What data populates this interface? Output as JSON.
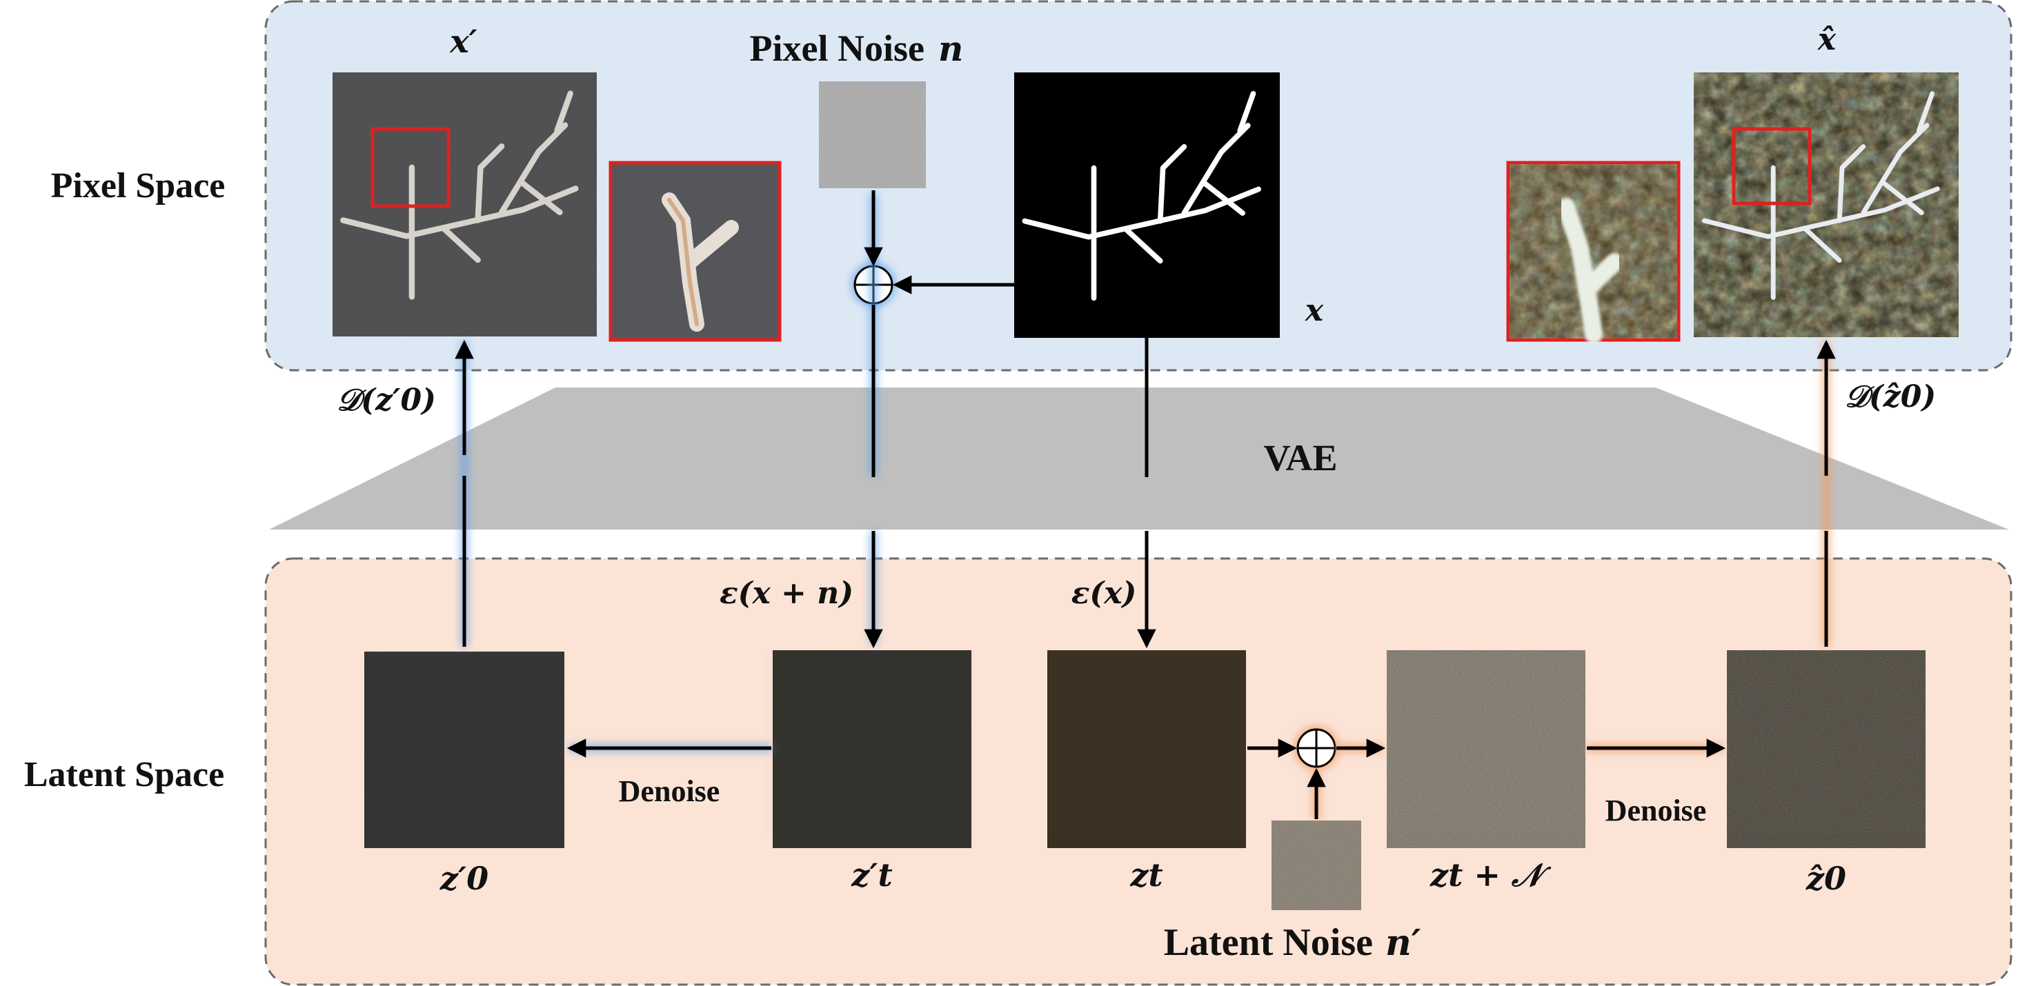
{
  "pixel_space": {
    "label": "Pixel Space"
  },
  "latent_space": {
    "label": "Latent Space"
  },
  "vae": {
    "label": "VAE"
  },
  "pixel_noise": {
    "label": "Pixel Noise",
    "symbol": "n"
  },
  "latent_noise": {
    "label": "Latent Noise",
    "symbol": "n′"
  },
  "images": {
    "x_prime": "x′",
    "x": "x",
    "x_hat": "x̂",
    "z0_prime": "z′0",
    "zt_prime": "z′t",
    "zt": "zt",
    "zt_plus_N": "zt + 𝒩",
    "z0_hat": "ẑ0"
  },
  "arrows": {
    "decode_left": "𝒟(z′0)",
    "decode_right": "𝒟(ẑ0)",
    "encode_noisy": "ε(x + n)",
    "encode_clean": "ε(x)",
    "denoise_left": "Denoise",
    "denoise_right": "Denoise"
  },
  "colors": {
    "pixel_panel": "#dde8f5",
    "latent_panel": "#fbe3d6",
    "vae_band": "#bfbfbf",
    "blue_glow": "#5aa0e6",
    "orange_glow": "#f29a5c",
    "highlight_box": "#e02020"
  }
}
